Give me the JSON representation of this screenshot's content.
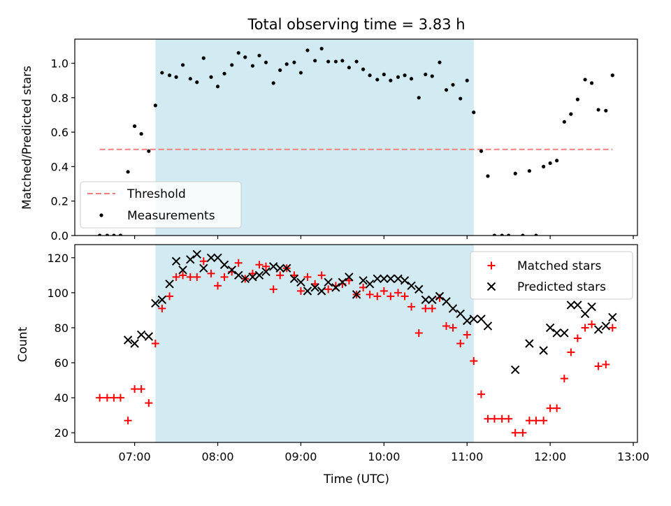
{
  "chart_data": {
    "title": "Total observing time = 3.83 h",
    "xlabel": "Time (UTC)",
    "x_unit": "hours UTC",
    "xlim": [
      6.28,
      13.05
    ],
    "x_ticks": [
      7,
      8,
      9,
      10,
      11,
      12,
      13
    ],
    "x_tick_labels": [
      "07:00",
      "08:00",
      "09:00",
      "10:00",
      "11:00",
      "12:00",
      "13:00"
    ],
    "observing_window": {
      "start": 7.25,
      "end": 11.08,
      "color": "#add8e6"
    },
    "panels": [
      {
        "type": "scatter",
        "ylabel": "Matched/Predicted stars",
        "ylim": [
          0,
          1.14
        ],
        "y_ticks": [
          0.0,
          0.2,
          0.4,
          0.6,
          0.8,
          1.0
        ],
        "y_tick_labels": [
          "0.0",
          "0.2",
          "0.4",
          "0.6",
          "0.8",
          "1.0"
        ],
        "grid": false,
        "legend_position": "lower-left",
        "threshold": {
          "name": "Threshold",
          "value": 0.5,
          "x_range": [
            6.58,
            12.75
          ],
          "color": "#f08080"
        },
        "series": [
          {
            "name": "Measurements",
            "marker": "dot",
            "color": "#000000",
            "points": [
              [
                6.58,
                0.0
              ],
              [
                6.67,
                0.0
              ],
              [
                6.75,
                0.0
              ],
              [
                6.83,
                0.0
              ],
              [
                6.92,
                0.37
              ],
              [
                7.0,
                0.635
              ],
              [
                7.08,
                0.59
              ],
              [
                7.17,
                0.49
              ],
              [
                7.25,
                0.755
              ],
              [
                7.33,
                0.945
              ],
              [
                7.42,
                0.93
              ],
              [
                7.5,
                0.92
              ],
              [
                7.58,
                0.99
              ],
              [
                7.67,
                0.91
              ],
              [
                7.75,
                0.89
              ],
              [
                7.83,
                1.03
              ],
              [
                7.92,
                0.92
              ],
              [
                8.0,
                0.865
              ],
              [
                8.08,
                0.94
              ],
              [
                8.17,
                0.99
              ],
              [
                8.25,
                1.06
              ],
              [
                8.33,
                1.035
              ],
              [
                8.42,
                0.985
              ],
              [
                8.5,
                1.045
              ],
              [
                8.58,
                1.005
              ],
              [
                8.67,
                0.885
              ],
              [
                8.75,
                0.96
              ],
              [
                8.83,
                0.995
              ],
              [
                8.92,
                1.005
              ],
              [
                9.0,
                0.945
              ],
              [
                9.08,
                1.075
              ],
              [
                9.17,
                1.015
              ],
              [
                9.25,
                1.085
              ],
              [
                9.33,
                1.01
              ],
              [
                9.42,
                1.01
              ],
              [
                9.5,
                1.015
              ],
              [
                9.58,
                0.975
              ],
              [
                9.67,
                1.01
              ],
              [
                9.75,
                0.965
              ],
              [
                9.83,
                0.93
              ],
              [
                9.92,
                0.905
              ],
              [
                10.0,
                0.935
              ],
              [
                10.08,
                0.9
              ],
              [
                10.17,
                0.92
              ],
              [
                10.25,
                0.93
              ],
              [
                10.33,
                0.91
              ],
              [
                10.42,
                0.8
              ],
              [
                10.5,
                0.935
              ],
              [
                10.58,
                0.925
              ],
              [
                10.67,
                1.005
              ],
              [
                10.75,
                0.845
              ],
              [
                10.83,
                0.875
              ],
              [
                10.92,
                0.795
              ],
              [
                11.0,
                0.9
              ],
              [
                11.08,
                0.715
              ],
              [
                11.17,
                0.49
              ],
              [
                11.25,
                0.345
              ],
              [
                11.33,
                0.0
              ],
              [
                11.42,
                0.0
              ],
              [
                11.5,
                0.0
              ],
              [
                11.58,
                0.36
              ],
              [
                11.67,
                0.0
              ],
              [
                11.75,
                0.375
              ],
              [
                11.83,
                0.0
              ],
              [
                11.92,
                0.4
              ],
              [
                12.0,
                0.42
              ],
              [
                12.08,
                0.435
              ],
              [
                12.17,
                0.66
              ],
              [
                12.25,
                0.705
              ],
              [
                12.33,
                0.79
              ],
              [
                12.42,
                0.905
              ],
              [
                12.5,
                0.885
              ],
              [
                12.58,
                0.73
              ],
              [
                12.67,
                0.725
              ],
              [
                12.75,
                0.93
              ]
            ]
          }
        ]
      },
      {
        "type": "scatter",
        "ylabel": "Count",
        "ylim": [
          14.5,
          127.5
        ],
        "y_ticks": [
          20,
          40,
          60,
          80,
          100,
          120
        ],
        "y_tick_labels": [
          "20",
          "40",
          "60",
          "80",
          "100",
          "120"
        ],
        "grid": false,
        "legend_position": "upper-right",
        "series": [
          {
            "name": "Matched stars",
            "marker": "plus",
            "color": "#ff0000",
            "points": [
              [
                6.58,
                40
              ],
              [
                6.67,
                40
              ],
              [
                6.75,
                40
              ],
              [
                6.83,
                40
              ],
              [
                6.92,
                27
              ],
              [
                7.0,
                45
              ],
              [
                7.08,
                45
              ],
              [
                7.17,
                37
              ],
              [
                7.25,
                71
              ],
              [
                7.33,
                91
              ],
              [
                7.42,
                98
              ],
              [
                7.5,
                109
              ],
              [
                7.58,
                110
              ],
              [
                7.67,
                109
              ],
              [
                7.75,
                109
              ],
              [
                7.83,
                118
              ],
              [
                7.92,
                111
              ],
              [
                8.0,
                104
              ],
              [
                8.08,
                109
              ],
              [
                8.17,
                112
              ],
              [
                8.25,
                117
              ],
              [
                8.33,
                108
              ],
              [
                8.42,
                111
              ],
              [
                8.5,
                116
              ],
              [
                8.58,
                115
              ],
              [
                8.67,
                102
              ],
              [
                8.75,
                110
              ],
              [
                8.83,
                114
              ],
              [
                8.92,
                110
              ],
              [
                9.0,
                101
              ],
              [
                9.08,
                109
              ],
              [
                9.17,
                105
              ],
              [
                9.25,
                110
              ],
              [
                9.33,
                102
              ],
              [
                9.42,
                104
              ],
              [
                9.5,
                105
              ],
              [
                9.58,
                107
              ],
              [
                9.67,
                99
              ],
              [
                9.75,
                103
              ],
              [
                9.83,
                99
              ],
              [
                9.92,
                98
              ],
              [
                10.0,
                101
              ],
              [
                10.08,
                98
              ],
              [
                10.17,
                100
              ],
              [
                10.25,
                98
              ],
              [
                10.33,
                92
              ],
              [
                10.42,
                77
              ],
              [
                10.5,
                91
              ],
              [
                10.58,
                91
              ],
              [
                10.67,
                97
              ],
              [
                10.75,
                81
              ],
              [
                10.83,
                80
              ],
              [
                10.92,
                71
              ],
              [
                11.0,
                76
              ],
              [
                11.08,
                61
              ],
              [
                11.17,
                42
              ],
              [
                11.25,
                28
              ],
              [
                11.33,
                28
              ],
              [
                11.42,
                28
              ],
              [
                11.5,
                28
              ],
              [
                11.58,
                20
              ],
              [
                11.67,
                20
              ],
              [
                11.75,
                27
              ],
              [
                11.83,
                27
              ],
              [
                11.92,
                27
              ],
              [
                12.0,
                34
              ],
              [
                12.08,
                34
              ],
              [
                12.17,
                51
              ],
              [
                12.25,
                66
              ],
              [
                12.33,
                74
              ],
              [
                12.42,
                80
              ],
              [
                12.5,
                82
              ],
              [
                12.58,
                58
              ],
              [
                12.67,
                59
              ],
              [
                12.75,
                80
              ]
            ]
          },
          {
            "name": "Predicted stars",
            "marker": "x",
            "color": "#000000",
            "points": [
              [
                6.92,
                73
              ],
              [
                7.0,
                71
              ],
              [
                7.08,
                76
              ],
              [
                7.17,
                75
              ],
              [
                7.25,
                94
              ],
              [
                7.33,
                96
              ],
              [
                7.42,
                105
              ],
              [
                7.5,
                118
              ],
              [
                7.58,
                113
              ],
              [
                7.67,
                119
              ],
              [
                7.75,
                122
              ],
              [
                7.83,
                114
              ],
              [
                7.92,
                120
              ],
              [
                8.0,
                120
              ],
              [
                8.08,
                116
              ],
              [
                8.17,
                113
              ],
              [
                8.25,
                110
              ],
              [
                8.33,
                108
              ],
              [
                8.42,
                109
              ],
              [
                8.5,
                110
              ],
              [
                8.58,
                112
              ],
              [
                8.67,
                115
              ],
              [
                8.75,
                114
              ],
              [
                8.83,
                114
              ],
              [
                8.92,
                108
              ],
              [
                9.0,
                106
              ],
              [
                9.08,
                101
              ],
              [
                9.17,
                103
              ],
              [
                9.25,
                101
              ],
              [
                9.33,
                106
              ],
              [
                9.42,
                103
              ],
              [
                9.5,
                106
              ],
              [
                9.58,
                109
              ],
              [
                9.67,
                99
              ],
              [
                9.75,
                107
              ],
              [
                9.83,
                105
              ],
              [
                9.92,
                108
              ],
              [
                10.0,
                108
              ],
              [
                10.08,
                108
              ],
              [
                10.17,
                108
              ],
              [
                10.25,
                107
              ],
              [
                10.33,
                104
              ],
              [
                10.42,
                102
              ],
              [
                10.5,
                96
              ],
              [
                10.58,
                96
              ],
              [
                10.67,
                98
              ],
              [
                10.75,
                95
              ],
              [
                10.83,
                91
              ],
              [
                10.92,
                88
              ],
              [
                11.0,
                84
              ],
              [
                11.08,
                85
              ],
              [
                11.17,
                85
              ],
              [
                11.25,
                81
              ],
              [
                11.58,
                56
              ],
              [
                11.75,
                71
              ],
              [
                11.92,
                67
              ],
              [
                12.0,
                80
              ],
              [
                12.08,
                77
              ],
              [
                12.17,
                77
              ],
              [
                12.25,
                93
              ],
              [
                12.33,
                93
              ],
              [
                12.42,
                88
              ],
              [
                12.5,
                92
              ],
              [
                12.58,
                79
              ],
              [
                12.67,
                81
              ],
              [
                12.75,
                86
              ]
            ]
          }
        ]
      }
    ]
  }
}
